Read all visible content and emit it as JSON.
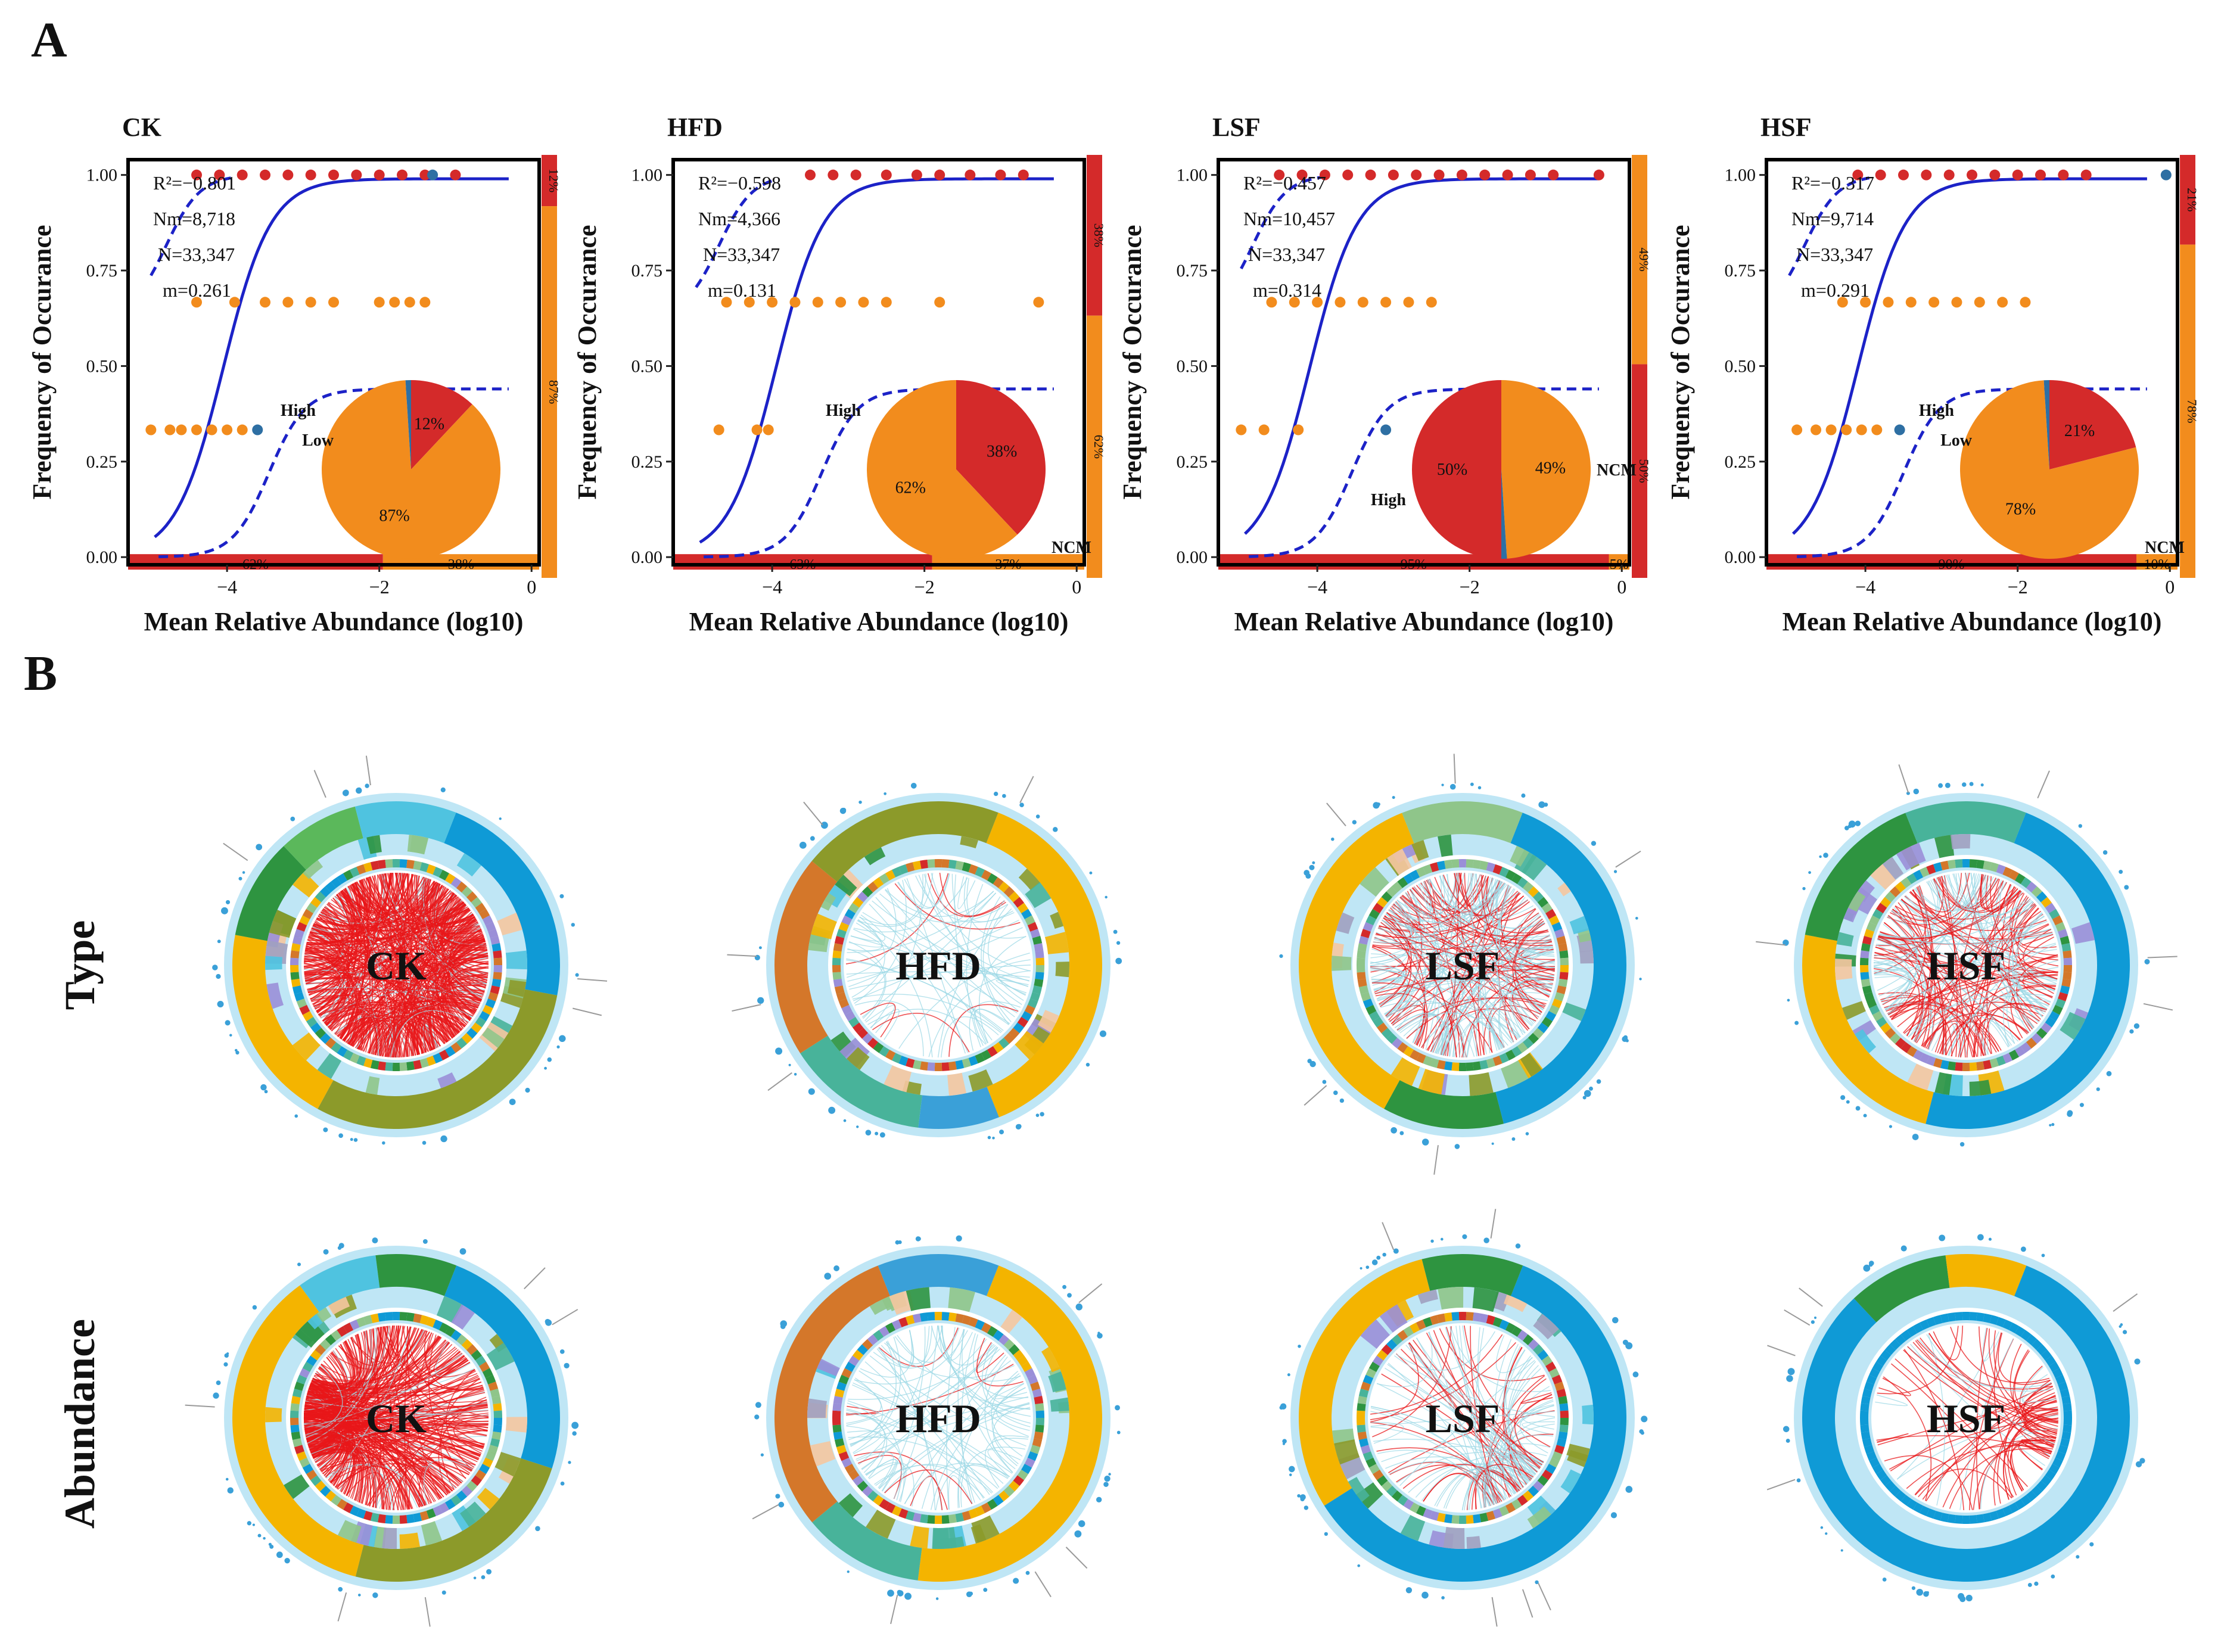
{
  "panel_labels": {
    "a": "A",
    "b": "B"
  },
  "row_labels": {
    "type": "Type",
    "abundance": "Abundance"
  },
  "scatter": {
    "xlabel": "Mean Relative Abundance (log10)",
    "ylabel": "Frequency of Occurance",
    "xlim": [
      -5.3,
      0.1
    ],
    "ylim": [
      -0.02,
      1.04
    ],
    "xticks": [
      -4,
      -2,
      0
    ],
    "xtick_labels": [
      "−4",
      "−2",
      "0"
    ],
    "yticks": [
      0,
      0.25,
      0.5,
      0.75,
      1.0
    ],
    "ytick_labels": [
      "0.00",
      "0.25",
      "0.50",
      "0.75",
      "1.00"
    ],
    "pie_legend": {
      "high": "High",
      "low": "Low",
      "ncm": "NCM"
    }
  },
  "chart_data": [
    {
      "type": "scatter",
      "title": "CK",
      "stats": [
        "R²=−0.801",
        "Nm=8,718",
        "N=33,347",
        "m=0.261"
      ],
      "fit_x0": -4.05,
      "lower_x0": -3.45,
      "upper_x0": -4.8,
      "points_orange": [
        [
          -5.0,
          0.333
        ],
        [
          -4.75,
          0.333
        ],
        [
          -4.6,
          0.333
        ],
        [
          -4.4,
          0.333
        ],
        [
          -4.2,
          0.333
        ],
        [
          -4.0,
          0.333
        ],
        [
          -3.8,
          0.333
        ],
        [
          -4.4,
          0.667
        ],
        [
          -3.9,
          0.667
        ],
        [
          -3.5,
          0.667
        ],
        [
          -3.2,
          0.667
        ],
        [
          -2.9,
          0.667
        ],
        [
          -2.6,
          0.667
        ],
        [
          -2.0,
          0.667
        ],
        [
          -1.8,
          0.667
        ],
        [
          -1.6,
          0.667
        ],
        [
          -1.4,
          0.667
        ]
      ],
      "points_red": [
        [
          -4.4,
          1
        ],
        [
          -4.1,
          1
        ],
        [
          -3.8,
          1
        ],
        [
          -3.5,
          1
        ],
        [
          -3.2,
          1
        ],
        [
          -2.9,
          1
        ],
        [
          -2.6,
          1
        ],
        [
          -2.3,
          1
        ],
        [
          -2.0,
          1
        ],
        [
          -1.7,
          1
        ],
        [
          -1.4,
          1
        ],
        [
          -1.0,
          1
        ]
      ],
      "points_blue": [
        [
          -3.6,
          0.333
        ],
        [
          -1.3,
          1
        ]
      ],
      "bottom_bar": [
        {
          "label": "62%",
          "value": 62,
          "color": "#d42a2a"
        },
        {
          "label": "38%",
          "value": 38,
          "color": "#f28c1d"
        }
      ],
      "side_bar": [
        {
          "label": "12%",
          "value": 12,
          "color": "#d42a2a"
        },
        {
          "label": "87%",
          "value": 87,
          "color": "#f28c1d"
        }
      ],
      "pie": [
        {
          "label": "12%",
          "value": 12,
          "color": "#d42a2a"
        },
        {
          "label": "87%",
          "value": 87,
          "color": "#f28c1d"
        },
        {
          "label": "",
          "value": 1,
          "color": "#2e6fa3"
        }
      ]
    },
    {
      "type": "scatter",
      "title": "HFD",
      "stats": [
        "R²=−0.598",
        "Nm=4,366",
        "N=33,347",
        "m=0.131"
      ],
      "fit_x0": -3.95,
      "lower_x0": -3.35,
      "upper_x0": -4.7,
      "points_orange": [
        [
          -4.7,
          0.333
        ],
        [
          -4.2,
          0.333
        ],
        [
          -4.05,
          0.333
        ],
        [
          -4.6,
          0.667
        ],
        [
          -4.3,
          0.667
        ],
        [
          -4.0,
          0.667
        ],
        [
          -3.7,
          0.667
        ],
        [
          -3.4,
          0.667
        ],
        [
          -3.1,
          0.667
        ],
        [
          -2.8,
          0.667
        ],
        [
          -2.5,
          0.667
        ],
        [
          -1.8,
          0.667
        ],
        [
          -0.5,
          0.667
        ]
      ],
      "points_red": [
        [
          -3.5,
          1
        ],
        [
          -3.2,
          1
        ],
        [
          -2.9,
          1
        ],
        [
          -2.5,
          1
        ],
        [
          -2.1,
          1
        ],
        [
          -1.8,
          1
        ],
        [
          -1.4,
          1
        ],
        [
          -1.0,
          1
        ],
        [
          -0.7,
          1
        ]
      ],
      "points_blue": [],
      "bottom_bar": [
        {
          "label": "63%",
          "value": 63,
          "color": "#d42a2a"
        },
        {
          "label": "37%",
          "value": 37,
          "color": "#f28c1d"
        }
      ],
      "side_bar": [
        {
          "label": "38%",
          "value": 38,
          "color": "#d42a2a"
        },
        {
          "label": "62%",
          "value": 62,
          "color": "#f28c1d"
        }
      ],
      "pie": [
        {
          "label": "38%",
          "value": 38,
          "color": "#d42a2a"
        },
        {
          "label": "62%",
          "value": 62,
          "color": "#f28c1d"
        }
      ]
    },
    {
      "type": "scatter",
      "title": "LSF",
      "stats": [
        "R²=−0.457",
        "Nm=10,457",
        "N=33,347",
        "m=0.314"
      ],
      "fit_x0": -4.1,
      "lower_x0": -3.55,
      "upper_x0": -4.85,
      "points_orange": [
        [
          -5.0,
          0.333
        ],
        [
          -4.7,
          0.333
        ],
        [
          -4.25,
          0.333
        ],
        [
          -4.6,
          0.667
        ],
        [
          -4.3,
          0.667
        ],
        [
          -4.0,
          0.667
        ],
        [
          -3.7,
          0.667
        ],
        [
          -3.4,
          0.667
        ],
        [
          -3.1,
          0.667
        ],
        [
          -2.8,
          0.667
        ],
        [
          -2.5,
          0.667
        ]
      ],
      "points_red": [
        [
          -4.5,
          1
        ],
        [
          -4.2,
          1
        ],
        [
          -3.9,
          1
        ],
        [
          -3.6,
          1
        ],
        [
          -3.3,
          1
        ],
        [
          -3.0,
          1
        ],
        [
          -2.7,
          1
        ],
        [
          -2.4,
          1
        ],
        [
          -2.1,
          1
        ],
        [
          -1.8,
          1
        ],
        [
          -1.5,
          1
        ],
        [
          -1.2,
          1
        ],
        [
          -0.9,
          1
        ],
        [
          -0.3,
          1
        ]
      ],
      "points_blue": [
        [
          -3.1,
          0.333
        ]
      ],
      "bottom_bar": [
        {
          "label": "95%",
          "value": 95,
          "color": "#d42a2a"
        },
        {
          "label": "5%",
          "value": 5,
          "color": "#f28c1d"
        }
      ],
      "side_bar": [
        {
          "label": "49%",
          "value": 49,
          "color": "#f28c1d"
        },
        {
          "label": "50%",
          "value": 50,
          "color": "#d42a2a"
        }
      ],
      "pie": [
        {
          "label": "49%",
          "value": 49,
          "color": "#f28c1d"
        },
        {
          "label": "",
          "value": 1,
          "color": "#2e6fa3"
        },
        {
          "label": "50%",
          "value": 50,
          "color": "#d42a2a"
        }
      ]
    },
    {
      "type": "scatter",
      "title": "HSF",
      "stats": [
        "R²=−0.317",
        "Nm=9,714",
        "N=33,347",
        "m=0.291"
      ],
      "fit_x0": -4.1,
      "lower_x0": -3.5,
      "upper_x0": -4.8,
      "points_orange": [
        [
          -4.9,
          0.333
        ],
        [
          -4.65,
          0.333
        ],
        [
          -4.45,
          0.333
        ],
        [
          -4.25,
          0.333
        ],
        [
          -4.05,
          0.333
        ],
        [
          -3.85,
          0.333
        ],
        [
          -4.3,
          0.667
        ],
        [
          -4.0,
          0.667
        ],
        [
          -3.7,
          0.667
        ],
        [
          -3.4,
          0.667
        ],
        [
          -3.1,
          0.667
        ],
        [
          -2.8,
          0.667
        ],
        [
          -2.5,
          0.667
        ],
        [
          -2.2,
          0.667
        ],
        [
          -1.9,
          0.667
        ]
      ],
      "points_red": [
        [
          -4.1,
          1
        ],
        [
          -3.8,
          1
        ],
        [
          -3.5,
          1
        ],
        [
          -3.2,
          1
        ],
        [
          -2.9,
          1
        ],
        [
          -2.6,
          1
        ],
        [
          -2.3,
          1
        ],
        [
          -2.0,
          1
        ],
        [
          -1.7,
          1
        ],
        [
          -1.4,
          1
        ],
        [
          -1.1,
          1
        ]
      ],
      "points_blue": [
        [
          -3.55,
          0.333
        ],
        [
          -0.05,
          1
        ]
      ],
      "bottom_bar": [
        {
          "label": "90%",
          "value": 90,
          "color": "#d42a2a"
        },
        {
          "label": "10%",
          "value": 10,
          "color": "#f28c1d"
        }
      ],
      "side_bar": [
        {
          "label": "21%",
          "value": 21,
          "color": "#d42a2a"
        },
        {
          "label": "78%",
          "value": 78,
          "color": "#f28c1d"
        }
      ],
      "pie": [
        {
          "label": "21%",
          "value": 21,
          "color": "#d42a2a"
        },
        {
          "label": "78%",
          "value": 78,
          "color": "#f28c1d"
        },
        {
          "label": "",
          "value": 1,
          "color": "#2e6fa3"
        }
      ]
    }
  ],
  "networks": {
    "type_row": [
      {
        "label": "CK",
        "edge_color": "#e8171a",
        "edges": 520,
        "red_share": 0.9,
        "ring": [
          {
            "c": "#0f9ad6",
            "v": 22
          },
          {
            "c": "#8c9a2a",
            "v": 30
          },
          {
            "c": "#f4b400",
            "v": 20
          },
          {
            "c": "#2e9440",
            "v": 10
          },
          {
            "c": "#5bb85b",
            "v": 8
          },
          {
            "c": "#4fc3e0",
            "v": 10
          }
        ]
      },
      {
        "label": "HFD",
        "edge_color": "#9cd8e6",
        "edges": 70,
        "red_share": 0.12,
        "ring": [
          {
            "c": "#f4b400",
            "v": 38
          },
          {
            "c": "#3aa0d8",
            "v": 8
          },
          {
            "c": "#48b39a",
            "v": 14
          },
          {
            "c": "#d4772a",
            "v": 20
          },
          {
            "c": "#8c9a2a",
            "v": 20
          }
        ]
      },
      {
        "label": "LSF",
        "edge_color": "#9cd8e6",
        "edges": 240,
        "red_share": 0.45,
        "ring": [
          {
            "c": "#0f9ad6",
            "v": 40
          },
          {
            "c": "#2e9440",
            "v": 12
          },
          {
            "c": "#f4b400",
            "v": 36
          },
          {
            "c": "#8fc58a",
            "v": 12
          }
        ]
      },
      {
        "label": "HSF",
        "edge_color": "#9cd8e6",
        "edges": 200,
        "red_share": 0.55,
        "ring": [
          {
            "c": "#0f9ad6",
            "v": 48
          },
          {
            "c": "#f4b400",
            "v": 24
          },
          {
            "c": "#2e9440",
            "v": 16
          },
          {
            "c": "#48b39a",
            "v": 12
          }
        ]
      }
    ],
    "abundance_row": [
      {
        "label": "CK",
        "edge_color": "#e8171a",
        "edges": 420,
        "red_share": 0.92,
        "focus": "left",
        "ring": [
          {
            "c": "#0f9ad6",
            "v": 24
          },
          {
            "c": "#8c9a2a",
            "v": 24
          },
          {
            "c": "#f4b400",
            "v": 36
          },
          {
            "c": "#4fc3e0",
            "v": 8
          },
          {
            "c": "#2e9440",
            "v": 8
          }
        ]
      },
      {
        "label": "HFD",
        "edge_color": "#9cd8e6",
        "edges": 90,
        "red_share": 0.1,
        "focus": "none",
        "ring": [
          {
            "c": "#f4b400",
            "v": 46
          },
          {
            "c": "#48b39a",
            "v": 12
          },
          {
            "c": "#d4772a",
            "v": 30
          },
          {
            "c": "#3aa0d8",
            "v": 12
          }
        ]
      },
      {
        "label": "LSF",
        "edge_color": "#9cd8e6",
        "edges": 120,
        "red_share": 0.35,
        "focus": "bottom-right",
        "ring": [
          {
            "c": "#0f9ad6",
            "v": 60
          },
          {
            "c": "#f4b400",
            "v": 30
          },
          {
            "c": "#2e9440",
            "v": 10
          }
        ]
      },
      {
        "label": "HSF",
        "edge_color": "#e8171a",
        "edges": 80,
        "red_share": 0.85,
        "focus": "right",
        "ring": [
          {
            "c": "#0f9ad6",
            "v": 82
          },
          {
            "c": "#2e9440",
            "v": 10
          },
          {
            "c": "#f4b400",
            "v": 8
          }
        ]
      }
    ]
  }
}
